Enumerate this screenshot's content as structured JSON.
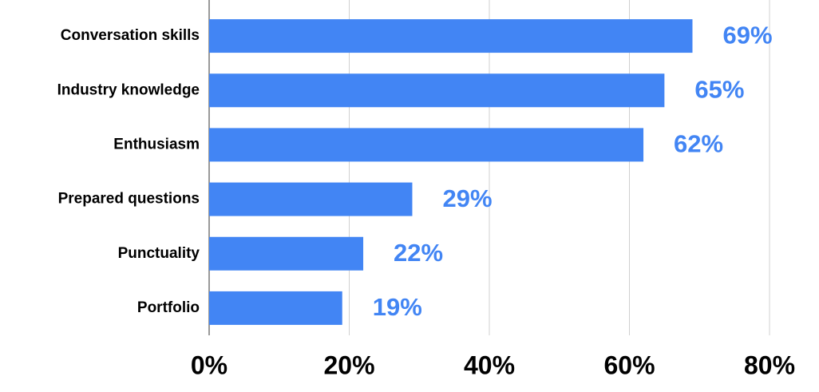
{
  "chart_data": {
    "type": "hbar",
    "categories": [
      "Conversation skills",
      "Industry knowledge",
      "Enthusiasm",
      "Prepared questions",
      "Punctuality",
      "Portfolio"
    ],
    "values": [
      69,
      65,
      62,
      29,
      22,
      19
    ],
    "value_labels": [
      "69%",
      "65%",
      "62%",
      "29%",
      "22%",
      "19%"
    ],
    "color": "#4285f4",
    "xlim": [
      0,
      80
    ],
    "xticks": [
      {
        "value": 0,
        "label": "0%"
      },
      {
        "value": 20,
        "label": "20%"
      },
      {
        "value": 40,
        "label": "40%"
      },
      {
        "value": 60,
        "label": "60%"
      },
      {
        "value": 80,
        "label": "80%"
      }
    ],
    "grid": true
  }
}
